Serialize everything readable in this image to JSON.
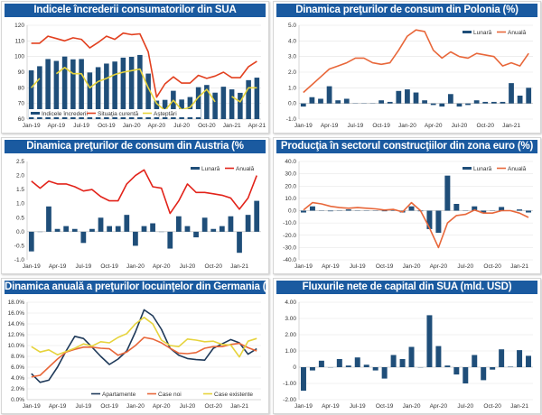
{
  "colors": {
    "title_bar": "#1a5aa0",
    "bar": "#1f4e79",
    "red": "#e2401f",
    "orange": "#e8673a",
    "yellow": "#e6d33c",
    "navy": "#1f3a5a"
  },
  "chart_data": [
    {
      "type": "bar",
      "title": "Indicele încrederii consumatorilor din SUA",
      "ylim": [
        60,
        120
      ],
      "ytick_labels": [
        "60",
        "70",
        "80",
        "90",
        "100",
        "110",
        "120"
      ],
      "x_labels": [
        "Jan-19",
        "Apr-19",
        "Jul-19",
        "Oct-19",
        "Jan-20",
        "Apr-20",
        "Jul-20",
        "Oct-20",
        "Jan-21",
        "Apr-21"
      ],
      "grid": true,
      "legend": "bottom-left",
      "series": [
        {
          "name": "Indicele încrederii",
          "kind": "bar",
          "color": "#1f4e79",
          "values": [
            91.2,
            93.8,
            98.4,
            97.2,
            100.0,
            98.2,
            98.4,
            89.8,
            93.2,
            95.5,
            96.8,
            99.3,
            99.8,
            101.0,
            89.1,
            71.8,
            72.3,
            78.1,
            72.5,
            74.1,
            80.4,
            81.8,
            76.9,
            80.7,
            79.0,
            76.8,
            84.9,
            86.5
          ]
        },
        {
          "name": "Situaţia curentă",
          "kind": "line",
          "color": "#e2401f",
          "values": [
            108.5,
            108.5,
            113.0,
            111.5,
            110.0,
            112.0,
            111.0,
            105.5,
            109.0,
            113.0,
            111.0,
            115.0,
            114.0,
            114.5,
            103.0,
            74.0,
            82.5,
            87.0,
            83.0,
            83.0,
            88.0,
            86.0,
            87.5,
            90.0,
            86.5,
            86.5,
            93.5,
            97.0
          ]
        },
        {
          "name": "Aşteptări",
          "kind": "line",
          "color": "#e6d33c",
          "values": [
            80.0,
            86.0,
            null,
            89.0,
            93.0,
            89.0,
            89.0,
            80.0,
            84.0,
            86.0,
            88.5,
            90.0,
            91.0,
            92.0,
            80.0,
            70.0,
            65.5,
            72.0,
            66.0,
            67.5,
            74.0,
            79.0,
            71.0,
            null,
            74.5,
            71.0,
            80.0,
            80.0
          ]
        }
      ]
    },
    {
      "type": "bar",
      "title": "Dinamica preţurilor de consum din Polonia (%)",
      "ylim": [
        -1,
        5
      ],
      "ytick_labels": [
        "-1.0",
        "0.0",
        "1.0",
        "2.0",
        "3.0",
        "4.0",
        "5.0"
      ],
      "x_labels": [
        "Jan-19",
        "Apr-19",
        "Jul-19",
        "Oct-19",
        "Jan-20",
        "Apr-20",
        "Jul-20",
        "Oct-20",
        "Jan-21"
      ],
      "grid": true,
      "legend": "top-right",
      "series": [
        {
          "name": "Lunară",
          "kind": "bar",
          "color": "#1f4e79",
          "values": [
            -0.2,
            0.4,
            0.3,
            1.1,
            0.2,
            0.3,
            0.0,
            0.0,
            0.0,
            0.2,
            0.1,
            0.8,
            0.9,
            0.7,
            0.2,
            -0.1,
            -0.2,
            0.6,
            -0.2,
            -0.1,
            0.2,
            0.1,
            0.1,
            0.1,
            1.3,
            0.5,
            1.0
          ]
        },
        {
          "name": "Anuală",
          "kind": "line",
          "color": "#e8673a",
          "values": [
            0.7,
            1.2,
            1.7,
            2.2,
            2.4,
            2.6,
            2.9,
            2.9,
            2.6,
            2.5,
            2.6,
            3.4,
            4.3,
            4.7,
            4.6,
            3.4,
            2.9,
            3.3,
            3.0,
            2.9,
            3.2,
            3.1,
            3.0,
            2.4,
            2.6,
            2.4,
            3.2
          ]
        }
      ]
    },
    {
      "type": "bar",
      "title": "Dinamica preţurilor de consum din Austria (%",
      "ylim": [
        -1,
        2.5
      ],
      "ytick_labels": [
        "-1.0",
        "-0.5",
        "0.0",
        "0.5",
        "1.0",
        "1.5",
        "2.0",
        "2.5"
      ],
      "x_labels": [
        "Jan-19",
        "Apr-19",
        "Jul-19",
        "Oct-19",
        "Jan-20",
        "Apr-20",
        "Jul-20",
        "Oct-20",
        "Jan-21"
      ],
      "grid": false,
      "legend": "top-right",
      "series": [
        {
          "name": "Lunară",
          "kind": "bar",
          "color": "#1f4e79",
          "values": [
            -0.7,
            0.0,
            0.9,
            0.1,
            0.2,
            0.1,
            -0.4,
            0.1,
            0.5,
            0.2,
            0.2,
            0.6,
            -0.5,
            0.2,
            0.3,
            0.0,
            -0.6,
            0.55,
            0.2,
            -0.2,
            0.5,
            0.1,
            0.2,
            0.55,
            -0.75,
            0.6,
            1.1
          ]
        },
        {
          "name": "Anuală",
          "kind": "line",
          "color": "#e2231a",
          "values": [
            1.8,
            1.55,
            1.8,
            1.7,
            1.7,
            1.6,
            1.45,
            1.5,
            1.25,
            1.1,
            1.1,
            1.7,
            2.0,
            2.2,
            1.6,
            1.55,
            0.65,
            1.1,
            1.7,
            1.4,
            1.4,
            1.35,
            1.3,
            1.2,
            0.8,
            1.2,
            2.0
          ]
        }
      ]
    },
    {
      "type": "bar",
      "title": "Producţia în sectorul construcţiilor din zona euro (%)",
      "ylim": [
        -40,
        40
      ],
      "ytick_labels": [
        "-40.0",
        "-30.0",
        "-20.0",
        "-10.0",
        "0.0",
        "10.0",
        "20.0",
        "30.0",
        "40.0"
      ],
      "x_labels": [
        "Jan-19",
        "Apr-19",
        "Jul-19",
        "Oct-19",
        "Jan-20",
        "Apr-20",
        "Jul-20",
        "Oct-20",
        "Jan-21"
      ],
      "grid": true,
      "legend": "top-right",
      "series": [
        {
          "name": "Lunară",
          "kind": "bar",
          "color": "#1f4e79",
          "values": [
            -1.5,
            3.5,
            0.0,
            -0.5,
            0.0,
            1.0,
            0.0,
            0.0,
            0.0,
            -0.5,
            1.0,
            -1.5,
            3.5,
            -0.5,
            -15.0,
            -18.0,
            28.5,
            5.5,
            0.0,
            3.5,
            -2.0,
            0.0,
            3.0,
            0.0,
            1.0,
            -1.5
          ]
        },
        {
          "name": "Anuală",
          "kind": "line",
          "color": "#e8673a",
          "values": [
            0.5,
            6.5,
            5.5,
            3.5,
            2.5,
            2.0,
            2.5,
            2.0,
            1.5,
            0.5,
            1.0,
            -1.0,
            6.5,
            0.0,
            -14.0,
            -30.0,
            -10.0,
            -4.0,
            -3.0,
            0.5,
            -2.0,
            -2.0,
            0.0,
            0.0,
            -2.0,
            -5.5
          ]
        }
      ]
    },
    {
      "type": "line",
      "title": "Dinamica anuală a preţurilor locuinţelor din Germania (%)",
      "ylim": [
        0,
        18
      ],
      "ytick_labels": [
        "0.0%",
        "2.0%",
        "4.0%",
        "6.0%",
        "8.0%",
        "10.0%",
        "12.0%",
        "14.0%",
        "16.0%",
        "18.0%"
      ],
      "x_labels": [
        "Jan-19",
        "Apr-19",
        "Jul-19",
        "Oct-19",
        "Jan-20",
        "Apr-20",
        "Jul-20",
        "Oct-20",
        "Jan-21"
      ],
      "grid": true,
      "legend": "bottom-right",
      "series": [
        {
          "name": "Apartamente",
          "kind": "line",
          "color": "#1f3a5a",
          "values": [
            4.8,
            3.2,
            3.6,
            6.0,
            9.0,
            11.7,
            11.3,
            9.7,
            8.0,
            6.5,
            7.5,
            9.0,
            12.5,
            16.6,
            15.5,
            13.0,
            9.5,
            8.2,
            7.6,
            7.4,
            7.3,
            9.5,
            10.3,
            11.1,
            10.5,
            8.4,
            9.4
          ]
        },
        {
          "name": "Case noi",
          "kind": "line",
          "color": "#e8673a",
          "values": [
            4.2,
            4.5,
            6.0,
            7.5,
            8.8,
            9.3,
            9.7,
            9.7,
            9.5,
            9.4,
            8.2,
            8.8,
            10.0,
            11.5,
            11.2,
            10.5,
            9.5,
            8.6,
            8.5,
            8.7,
            9.5,
            9.8,
            9.8,
            10.2,
            10.4,
            9.6,
            9.0
          ]
        },
        {
          "name": "Case existente",
          "kind": "line",
          "color": "#e6d33c",
          "values": [
            9.8,
            8.8,
            9.2,
            8.3,
            8.9,
            9.5,
            10.3,
            9.9,
            10.7,
            10.5,
            11.5,
            12.2,
            14.0,
            15.2,
            14.0,
            11.0,
            10.0,
            9.8,
            11.2,
            11.0,
            10.7,
            10.8,
            10.2,
            10.1,
            7.9,
            10.8,
            11.3
          ]
        }
      ]
    },
    {
      "type": "bar",
      "title": "Fluxurile nete de capital din SUA (mld. USD)",
      "ylim": [
        -2,
        4
      ],
      "ytick_labels": [
        "-2.00",
        "-1.00",
        "0",
        "1.00",
        "2.00",
        "3.00",
        "4.00"
      ],
      "x_labels": [
        "Jan-19",
        "Apr-19",
        "Jul-19",
        "Oct-19",
        "Jan-20",
        "Apr-20",
        "Jul-20",
        "Oct-20",
        "Jan-21"
      ],
      "grid": true,
      "legend": "none",
      "series": [
        {
          "kind": "bar",
          "color": "#1f4e79",
          "values": [
            -1.45,
            -0.2,
            0.4,
            0.0,
            0.5,
            0.1,
            0.6,
            0.15,
            -0.2,
            -0.7,
            0.75,
            0.5,
            1.25,
            0.0,
            3.2,
            1.3,
            0.1,
            -0.45,
            -1.0,
            0.75,
            -0.8,
            -0.15,
            1.1,
            0.03,
            1.05,
            0.7
          ]
        }
      ]
    }
  ]
}
